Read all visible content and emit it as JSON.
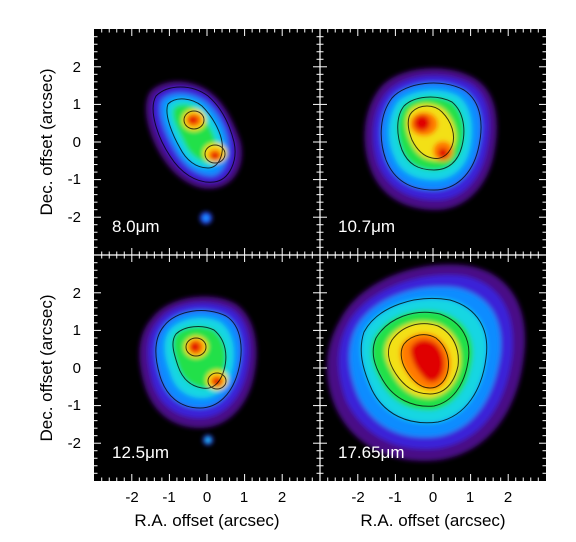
{
  "figure": {
    "panels": [
      {
        "label": "8.0μm"
      },
      {
        "label": "10.7μm"
      },
      {
        "label": "12.5μm"
      },
      {
        "label": "17.65μm"
      }
    ],
    "x_axis_title": "R.A. offset (arcsec)",
    "y_axis_title": "Dec. offset (arcsec)",
    "x_ticks": [
      "-2",
      "-1",
      "0",
      "1",
      "2"
    ],
    "y_ticks": [
      "2",
      "1",
      "0",
      "-1",
      "-2"
    ],
    "colormap": "rainbow",
    "background_color": "#000000",
    "contour_color": "#000000"
  }
}
